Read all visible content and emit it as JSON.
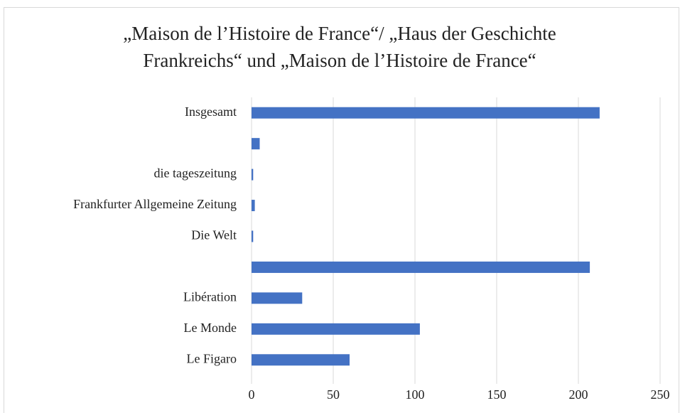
{
  "chart_data": {
    "type": "barh",
    "title": [
      "„Maison de l’Histoire de France“/  „Haus der Geschichte",
      "Frankreichs“ und „Maison de l’Histoire de France“"
    ],
    "categories": [
      "Insgesamt",
      null,
      "die tageszeitung",
      "Frankfurter Allgemeine Zeitung",
      "Die Welt",
      null,
      "Libération",
      "Le Monde",
      "Le Figaro"
    ],
    "values": [
      213,
      5,
      1,
      2,
      1,
      207,
      31,
      103,
      60
    ],
    "color": "#4472c4",
    "xlim": [
      0,
      250
    ],
    "xticks": [
      0,
      50,
      100,
      150,
      200,
      250
    ],
    "grid": true
  }
}
